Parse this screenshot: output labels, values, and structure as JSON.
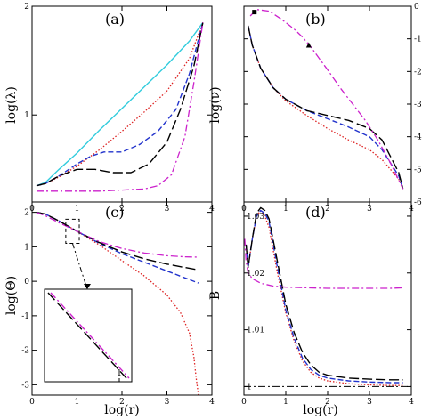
{
  "figure": {
    "panels": [
      "(a)",
      "(b)",
      "(c)",
      "(d)"
    ],
    "xlabel": "log(r)",
    "ylabels": {
      "a": "log(λ)",
      "b": "log(ν)",
      "c": "log(Θ)",
      "d": "B"
    }
  },
  "chart_data": [
    {
      "id": "a",
      "type": "line",
      "title": "(a)",
      "xlabel": "",
      "ylabel": "log(λ)",
      "xlim": [
        0,
        4
      ],
      "ylim": [
        0.2,
        2
      ],
      "xticks": [
        0,
        1,
        2,
        3,
        4
      ],
      "yticks": [
        1,
        2
      ],
      "series": [
        {
          "style": "solid",
          "color": "#33ccdd",
          "x": [
            0.1,
            0.3,
            0.6,
            1.0,
            1.5,
            2.0,
            2.5,
            3.0,
            3.5,
            3.8
          ],
          "y": [
            0.35,
            0.38,
            0.5,
            0.65,
            0.86,
            1.06,
            1.26,
            1.46,
            1.68,
            1.85
          ]
        },
        {
          "style": "dotted",
          "color": "#dd2222",
          "x": [
            0.1,
            0.3,
            0.6,
            1.0,
            1.5,
            2.0,
            2.5,
            3.0,
            3.5,
            3.8
          ],
          "y": [
            0.35,
            0.37,
            0.43,
            0.53,
            0.68,
            0.85,
            1.03,
            1.22,
            1.52,
            1.85
          ]
        },
        {
          "style": "dashed",
          "color": "#2233cc",
          "x": [
            0.1,
            0.3,
            0.6,
            1.0,
            1.3,
            1.6,
            2.0,
            2.4,
            2.8,
            3.2,
            3.5,
            3.8
          ],
          "y": [
            0.35,
            0.37,
            0.44,
            0.55,
            0.62,
            0.66,
            0.66,
            0.73,
            0.85,
            1.05,
            1.38,
            1.85
          ]
        },
        {
          "style": "longdash",
          "color": "#000000",
          "x": [
            0.1,
            0.3,
            0.6,
            1.0,
            1.4,
            1.8,
            2.2,
            2.6,
            3.0,
            3.3,
            3.6,
            3.8
          ],
          "y": [
            0.35,
            0.37,
            0.44,
            0.5,
            0.5,
            0.47,
            0.47,
            0.55,
            0.75,
            1.05,
            1.45,
            1.85
          ]
        },
        {
          "style": "dashdot",
          "color": "#cc22cc",
          "x": [
            0.1,
            0.5,
            1.0,
            1.5,
            2.0,
            2.5,
            2.8,
            3.1,
            3.4,
            3.6,
            3.8
          ],
          "y": [
            0.3,
            0.3,
            0.3,
            0.3,
            0.31,
            0.32,
            0.35,
            0.45,
            0.8,
            1.3,
            1.85
          ]
        }
      ]
    },
    {
      "id": "b",
      "type": "line",
      "title": "(b)",
      "xlabel": "",
      "ylabel": "log(ν)",
      "xlim": [
        0,
        4
      ],
      "ylim": [
        -6,
        0
      ],
      "xticks": [
        0,
        1,
        2,
        3,
        4
      ],
      "yticks": [
        -6,
        -5,
        -4,
        -3,
        -2,
        -1,
        0
      ],
      "series": [
        {
          "style": "dotted",
          "color": "#dd2222",
          "x": [
            0.1,
            0.2,
            0.4,
            0.7,
            1.0,
            1.5,
            2.0,
            2.5,
            3.0,
            3.3,
            3.5,
            3.7,
            3.8
          ],
          "y": [
            -0.6,
            -1.2,
            -1.9,
            -2.5,
            -2.9,
            -3.35,
            -3.75,
            -4.1,
            -4.4,
            -4.7,
            -5.0,
            -5.3,
            -5.6
          ]
        },
        {
          "style": "dashed",
          "color": "#2233cc",
          "x": [
            0.1,
            0.2,
            0.4,
            0.7,
            1.0,
            1.5,
            2.0,
            2.5,
            3.0,
            3.3,
            3.5,
            3.7,
            3.8
          ],
          "y": [
            -0.6,
            -1.2,
            -1.9,
            -2.5,
            -2.85,
            -3.2,
            -3.45,
            -3.7,
            -4.0,
            -4.4,
            -4.8,
            -5.2,
            -5.6
          ]
        },
        {
          "style": "longdash",
          "color": "#000000",
          "x": [
            0.1,
            0.2,
            0.4,
            0.7,
            1.0,
            1.5,
            2.0,
            2.5,
            3.0,
            3.3,
            3.5,
            3.7,
            3.8
          ],
          "y": [
            -0.6,
            -1.2,
            -1.9,
            -2.5,
            -2.85,
            -3.2,
            -3.35,
            -3.5,
            -3.75,
            -4.1,
            -4.6,
            -5.1,
            -5.6
          ]
        },
        {
          "style": "dashdot",
          "color": "#cc22cc",
          "x": [
            0.15,
            0.3,
            0.6,
            0.9,
            1.2,
            1.4,
            1.6,
            1.8,
            2.0,
            2.3,
            2.6,
            2.9,
            3.2,
            3.5,
            3.8
          ],
          "y": [
            -0.3,
            -0.1,
            -0.15,
            -0.4,
            -0.7,
            -0.95,
            -1.25,
            -1.6,
            -1.95,
            -2.5,
            -3.0,
            -3.5,
            -4.1,
            -4.8,
            -5.6
          ]
        }
      ],
      "markers": [
        {
          "shape": "square",
          "x": 0.25,
          "y": -0.18
        },
        {
          "shape": "triangle",
          "x": 1.55,
          "y": -1.2
        }
      ]
    },
    {
      "id": "c",
      "type": "line",
      "title": "(c)",
      "xlabel": "log(r)",
      "ylabel": "log(Θ)",
      "xlim": [
        0,
        4
      ],
      "ylim": [
        -3.3,
        2.3
      ],
      "xticks": [
        0,
        1,
        2,
        3,
        4
      ],
      "yticks": [
        -3,
        -2,
        -1,
        0,
        1,
        2
      ],
      "series": [
        {
          "style": "dotted",
          "color": "#dd2222",
          "x": [
            0.1,
            0.3,
            0.6,
            1.0,
            1.5,
            2.0,
            2.5,
            3.0,
            3.3,
            3.5,
            3.6,
            3.65,
            3.7
          ],
          "y": [
            2.0,
            1.95,
            1.75,
            1.45,
            1.05,
            0.6,
            0.15,
            -0.4,
            -0.9,
            -1.5,
            -2.2,
            -2.8,
            -3.3
          ]
        },
        {
          "style": "dashed",
          "color": "#2233cc",
          "x": [
            0.1,
            0.3,
            0.6,
            1.0,
            1.5,
            2.0,
            2.5,
            3.0,
            3.4,
            3.7
          ],
          "y": [
            2.0,
            1.95,
            1.75,
            1.45,
            1.1,
            0.8,
            0.55,
            0.3,
            0.1,
            -0.05
          ]
        },
        {
          "style": "longdash",
          "color": "#000000",
          "x": [
            0.1,
            0.3,
            0.6,
            1.0,
            1.5,
            2.0,
            2.5,
            3.0,
            3.4,
            3.7
          ],
          "y": [
            2.0,
            1.95,
            1.75,
            1.45,
            1.12,
            0.85,
            0.65,
            0.5,
            0.4,
            0.33
          ]
        },
        {
          "style": "dashdot",
          "color": "#cc22cc",
          "x": [
            0.1,
            0.3,
            0.6,
            1.0,
            1.5,
            2.0,
            2.5,
            3.0,
            3.4,
            3.7
          ],
          "y": [
            2.0,
            1.9,
            1.7,
            1.45,
            1.15,
            0.95,
            0.82,
            0.74,
            0.71,
            0.7
          ]
        }
      ],
      "zoom_box": {
        "xlim": [
          0.75,
          1.05
        ],
        "ylim": [
          1.1,
          1.8
        ]
      }
    },
    {
      "id": "d",
      "type": "line",
      "title": "(d)",
      "xlabel": "log(r)",
      "ylabel": "B",
      "xlim": [
        0,
        4
      ],
      "ylim": [
        0.9985,
        1.0325
      ],
      "xticks": [
        0,
        1,
        2,
        3,
        4
      ],
      "yticks": [
        1,
        1.01,
        1.02,
        1.03
      ],
      "yticklabels": [
        "1",
        "1.01",
        "1.02",
        "1.03"
      ],
      "series": [
        {
          "style": "dotted",
          "color": "#dd2222",
          "x": [
            0.05,
            0.1,
            0.2,
            0.3,
            0.4,
            0.5,
            0.6,
            0.8,
            1.0,
            1.2,
            1.4,
            1.6,
            1.8,
            2.0,
            2.5,
            3.0,
            3.5,
            3.8
          ],
          "y": [
            1.025,
            1.021,
            1.026,
            1.03,
            1.031,
            1.03,
            1.028,
            1.02,
            1.013,
            1.008,
            1.0045,
            1.0025,
            1.0015,
            1.001,
            1.0005,
            1.0003,
            1.0002,
            1.0002
          ]
        },
        {
          "style": "dashed",
          "color": "#2233cc",
          "x": [
            0.05,
            0.1,
            0.2,
            0.3,
            0.4,
            0.5,
            0.6,
            0.8,
            1.0,
            1.2,
            1.4,
            1.6,
            1.8,
            2.0,
            2.5,
            3.0,
            3.5,
            3.8
          ],
          "y": [
            1.025,
            1.021,
            1.026,
            1.03,
            1.031,
            1.0305,
            1.029,
            1.021,
            1.0135,
            1.0085,
            1.005,
            1.003,
            1.002,
            1.0015,
            1.001,
            1.0008,
            1.0007,
            1.0007
          ]
        },
        {
          "style": "longdash",
          "color": "#000000",
          "x": [
            0.05,
            0.1,
            0.2,
            0.3,
            0.4,
            0.5,
            0.6,
            0.8,
            1.0,
            1.2,
            1.4,
            1.6,
            1.8,
            2.0,
            2.5,
            3.0,
            3.5,
            3.8
          ],
          "y": [
            1.025,
            1.021,
            1.026,
            1.0305,
            1.0315,
            1.031,
            1.0295,
            1.022,
            1.0145,
            1.0095,
            1.006,
            1.0038,
            1.0025,
            1.002,
            1.0015,
            1.0013,
            1.0012,
            1.0012
          ]
        },
        {
          "style": "dashdot",
          "color": "#cc22cc",
          "x": [
            0.02,
            0.05,
            0.1,
            0.2,
            0.4,
            0.7,
            1.0,
            1.5,
            2.0,
            2.5,
            3.0,
            3.5,
            3.8
          ],
          "y": [
            1.026,
            1.022,
            1.02,
            1.019,
            1.0182,
            1.0177,
            1.0175,
            1.0174,
            1.0173,
            1.0173,
            1.0173,
            1.0173,
            1.0174
          ]
        },
        {
          "style": "dashdotblack",
          "color": "#000000",
          "x": [
            0,
            4
          ],
          "y": [
            1.0,
            1.0
          ]
        }
      ]
    }
  ]
}
